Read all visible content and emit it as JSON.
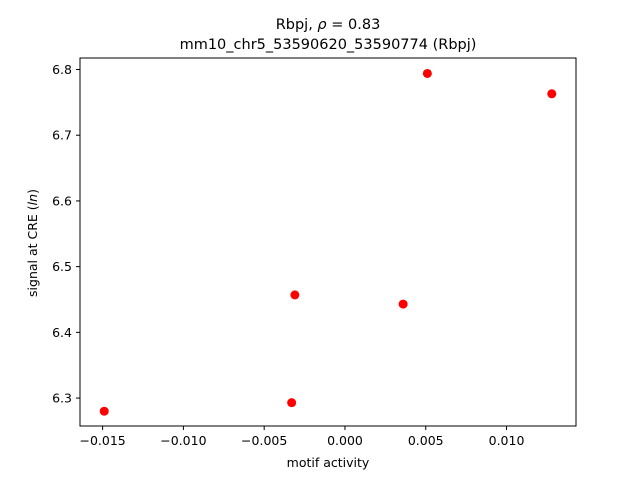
{
  "chart_data": {
    "type": "scatter",
    "title_line1_prefix": "Rbpj, ",
    "title_line1_rho": "ρ",
    "title_line1_suffix": " = 0.83",
    "title_line2": "mm10_chr5_53590620_53590774 (Rbpj)",
    "xlabel": "motif activity",
    "ylabel_prefix": "signal at CRE (",
    "ylabel_italic": "ln",
    "ylabel_suffix": ")",
    "xlim": [
      -0.0164,
      0.0143
    ],
    "ylim": [
      6.2575,
      6.8175
    ],
    "x_ticks": [
      -0.015,
      -0.01,
      -0.005,
      0.0,
      0.005,
      0.01
    ],
    "x_tick_labels": [
      "−0.015",
      "−0.010",
      "−0.005",
      "0.000",
      "0.005",
      "0.010"
    ],
    "y_ticks": [
      6.3,
      6.4,
      6.5,
      6.6,
      6.7,
      6.8
    ],
    "y_tick_labels": [
      "6.3",
      "6.4",
      "6.5",
      "6.6",
      "6.7",
      "6.8"
    ],
    "marker_color": "#ff0000",
    "series": [
      {
        "points": [
          {
            "x": -0.0149,
            "y": 6.28
          },
          {
            "x": -0.0033,
            "y": 6.293
          },
          {
            "x": -0.0031,
            "y": 6.457
          },
          {
            "x": 0.0036,
            "y": 6.443
          },
          {
            "x": 0.0051,
            "y": 6.794
          },
          {
            "x": 0.0128,
            "y": 6.763
          }
        ]
      }
    ],
    "grid": false,
    "legend": "none"
  }
}
